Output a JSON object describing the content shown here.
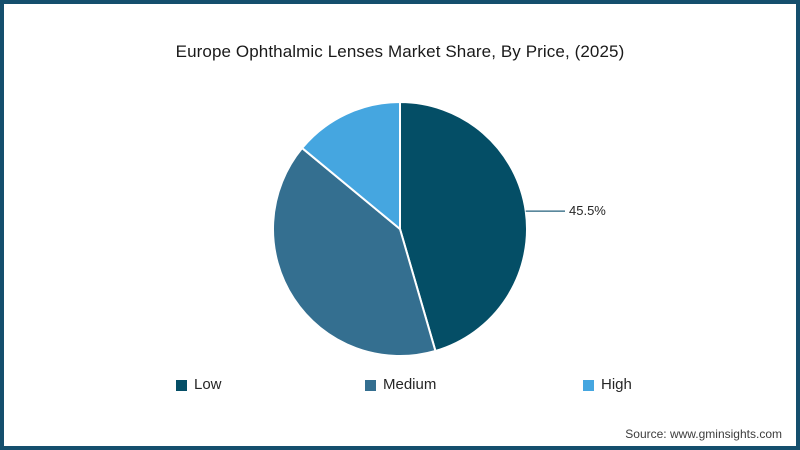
{
  "title": "Europe Ophthalmic Lenses Market Share, By Price, (2025)",
  "chart_data": {
    "type": "pie",
    "title": "Europe Ophthalmic Lenses Market Share, By Price, (2025)",
    "categories": [
      "Low",
      "Medium",
      "High"
    ],
    "values": [
      45.5,
      40.5,
      14.0
    ],
    "unit": "%",
    "colors": [
      "#044e66",
      "#346f90",
      "#45a6e0"
    ],
    "start_angle_deg": 0,
    "direction": "clockwise",
    "separator_color": "#ffffff",
    "leader_line_color": "#24607c",
    "annotations": [
      {
        "category": "Low",
        "text": "45.5%"
      }
    ],
    "legend_position": "bottom",
    "grid": false
  },
  "legend": {
    "items": [
      {
        "label": "Low",
        "color": "#044e66"
      },
      {
        "label": "Medium",
        "color": "#346f90"
      },
      {
        "label": "High",
        "color": "#45a6e0"
      }
    ]
  },
  "source": {
    "text": "Source: www.gminsights.com"
  },
  "frame": {
    "border_color": "#154f6d"
  }
}
